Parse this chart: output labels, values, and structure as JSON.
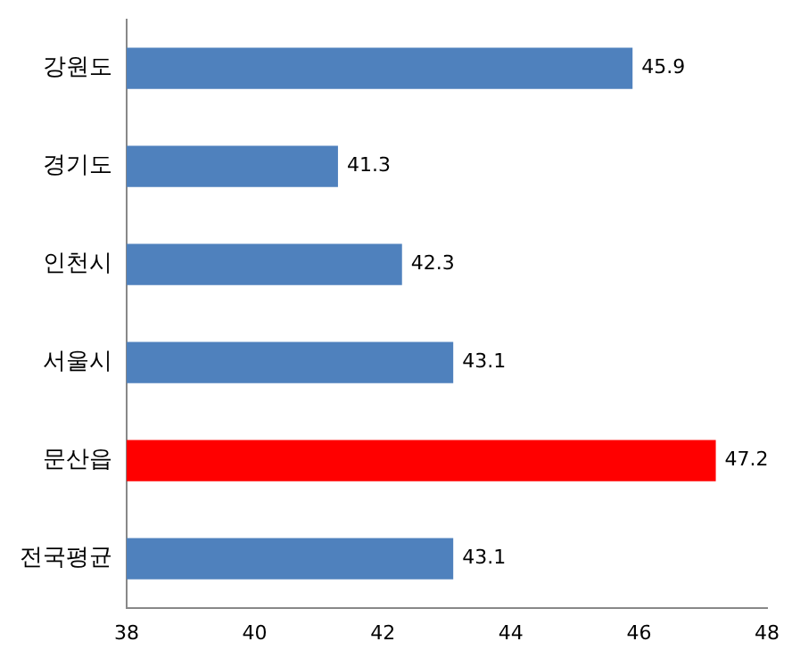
{
  "chart_data": {
    "type": "bar",
    "orientation": "horizontal",
    "categories": [
      "강원도",
      "경기도",
      "인천시",
      "서울시",
      "문산읍",
      "전국평균"
    ],
    "values": [
      45.9,
      41.3,
      42.3,
      43.1,
      47.2,
      43.1
    ],
    "colors": [
      "#4f81bd",
      "#4f81bd",
      "#4f81bd",
      "#4f81bd",
      "#ff0000",
      "#4f81bd"
    ],
    "xlim": [
      38,
      48
    ],
    "xticks": [
      38,
      40,
      42,
      44,
      46,
      48
    ],
    "grid": false,
    "legend": false,
    "data_labels": true
  }
}
